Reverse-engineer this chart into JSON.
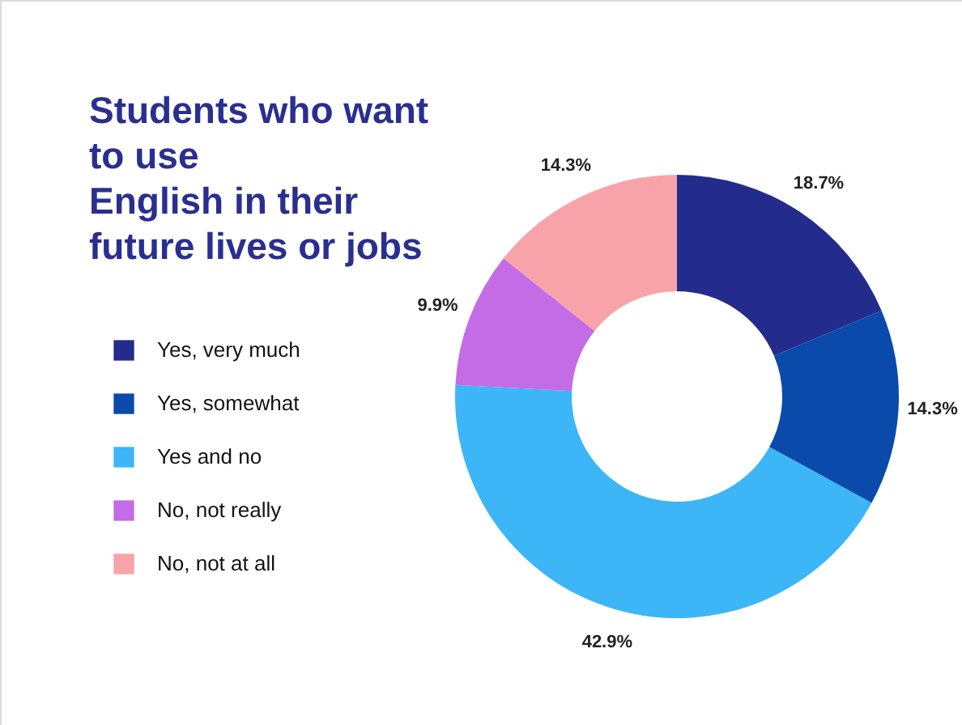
{
  "chart_data": {
    "type": "donut",
    "title": "Students who want\nto use\nEnglish in their\nfuture lives or jobs",
    "categories": [
      "Yes, very much",
      "Yes, somewhat",
      "Yes and no",
      "No, not really",
      "No, not at all"
    ],
    "values": [
      18.7,
      14.3,
      42.9,
      9.9,
      14.3
    ],
    "value_labels": [
      "18.7%",
      "14.3%",
      "42.9%",
      "9.9%",
      "14.3%"
    ],
    "colors": [
      "#232c8c",
      "#0a4aab",
      "#3cb6f6",
      "#c36ce6",
      "#f8a3aa"
    ],
    "legend": "left"
  }
}
